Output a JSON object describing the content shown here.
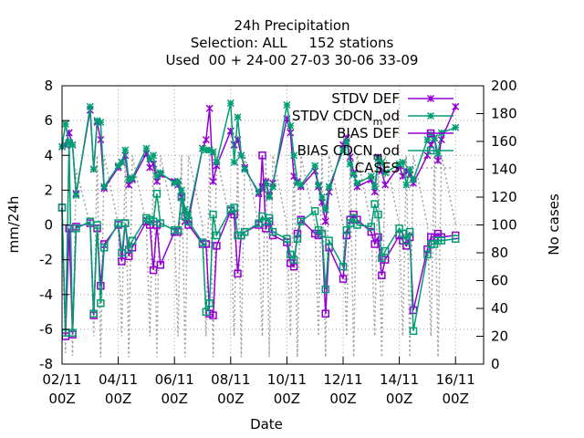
{
  "chart_data": {
    "type": "line",
    "title": [
      "24h Precipitation",
      "Selection: ALL     152 stations",
      "Used  00 + 24-00 27-03 30-06 33-09"
    ],
    "xlabel": "Date",
    "ylabel": "mm/24h",
    "y2label": "No cases",
    "xlim": [
      0,
      15
    ],
    "ylim": [
      -8,
      8
    ],
    "y2lim": [
      0,
      200
    ],
    "x_tick_labels": [
      {
        "line1": "02/11",
        "line2": "00Z"
      },
      {
        "line1": "04/11",
        "line2": "00Z"
      },
      {
        "line1": "06/11",
        "line2": "00Z"
      },
      {
        "line1": "08/11",
        "line2": "00Z"
      },
      {
        "line1": "10/11",
        "line2": "00Z"
      },
      {
        "line1": "12/11",
        "line2": "00Z"
      },
      {
        "line1": "14/11",
        "line2": "00Z"
      },
      {
        "line1": "16/11",
        "line2": "00Z"
      }
    ],
    "y_ticks": [
      -8,
      -6,
      -4,
      -2,
      0,
      2,
      4,
      6,
      8
    ],
    "y2_ticks": [
      0,
      20,
      40,
      60,
      80,
      100,
      120,
      140,
      160,
      180,
      200
    ],
    "grid": true,
    "legend_position": "top-right",
    "x": [
      0.0,
      0.125,
      0.25,
      0.375,
      0.5,
      1.0,
      1.125,
      1.25,
      1.375,
      1.5,
      2.0,
      2.125,
      2.25,
      2.375,
      2.5,
      3.0,
      3.125,
      3.25,
      3.375,
      3.5,
      4.0,
      4.125,
      4.25,
      4.375,
      4.5,
      5.0,
      5.125,
      5.25,
      5.375,
      5.5,
      6.0,
      6.125,
      6.25,
      6.375,
      6.5,
      7.0,
      7.125,
      7.25,
      7.375,
      7.5,
      8.0,
      8.125,
      8.25,
      8.375,
      8.5,
      9.0,
      9.125,
      9.25,
      9.375,
      9.5,
      10.0,
      10.125,
      10.25,
      10.375,
      10.5,
      11.0,
      11.125,
      11.25,
      11.375,
      11.5,
      12.0,
      12.125,
      12.25,
      12.375,
      12.5,
      13.0,
      13.125,
      13.25,
      13.375,
      13.5,
      14.0
    ],
    "series": [
      {
        "name": "STDV DEF",
        "color": "#9400d3",
        "marker": "asterisk",
        "values": [
          4.5,
          4.6,
          5.3,
          4.6,
          1.8,
          6.6,
          3.2,
          5.9,
          4.9,
          2.1,
          3.3,
          3.6,
          4.0,
          2.3,
          2.6,
          4.1,
          3.3,
          3.5,
          2.5,
          2.9,
          2.5,
          2.3,
          1.6,
          0.2,
          0.3,
          4.4,
          4.9,
          6.7,
          2.5,
          3.4,
          5.4,
          4.6,
          4.9,
          4.0,
          3.3,
          1.8,
          2.2,
          2.5,
          1.7,
          2.4,
          6.1,
          5.3,
          2.8,
          2.5,
          2.2,
          3.1,
          2.2,
          1.3,
          0.2,
          1.9,
          4.6,
          5.0,
          3.9,
          3.0,
          2.2,
          2.6,
          1.9,
          3.9,
          3.1,
          2.3,
          3.4,
          2.8,
          3.1,
          2.9,
          2.4,
          4.0,
          4.6,
          5.0,
          3.7,
          4.9,
          6.8
        ]
      },
      {
        "name": "STDV CDCN_mod",
        "color": "#009e73",
        "marker": "star",
        "values": [
          4.5,
          5.8,
          4.7,
          4.6,
          1.7,
          6.8,
          3.2,
          6.0,
          5.9,
          2.2,
          3.4,
          3.6,
          4.3,
          2.6,
          2.7,
          4.4,
          3.8,
          4.0,
          2.8,
          3.0,
          2.4,
          2.5,
          2.0,
          0.9,
          0.6,
          4.4,
          4.3,
          4.3,
          4.2,
          3.6,
          7.0,
          3.6,
          6.2,
          4.0,
          3.2,
          1.9,
          2.1,
          2.4,
          1.6,
          2.2,
          6.9,
          5.7,
          4.0,
          2.4,
          2.3,
          3.4,
          2.3,
          1.6,
          0.9,
          2.2,
          4.3,
          4.8,
          3.5,
          2.9,
          2.4,
          2.8,
          2.2,
          3.8,
          3.6,
          3.0,
          3.5,
          3.6,
          2.3,
          3.2,
          2.6,
          4.9,
          5.2,
          5.0,
          4.1,
          5.3,
          5.6
        ]
      },
      {
        "name": "BIAS DEF",
        "color": "#9400d3",
        "marker": "square",
        "values": [
          1.0,
          -6.4,
          -0.2,
          -6.3,
          -0.1,
          0.1,
          -5.2,
          -0.2,
          -3.5,
          -1.1,
          0.0,
          -2.1,
          0.1,
          -1.8,
          -1.3,
          0.2,
          0.0,
          -2.6,
          0.0,
          -2.3,
          -0.4,
          -0.4,
          1.6,
          0.5,
          0.0,
          -1.1,
          -1.1,
          -5.1,
          -5.2,
          -1.2,
          0.8,
          0.6,
          -2.8,
          -0.6,
          -0.4,
          0.0,
          4.0,
          -0.2,
          0.2,
          -0.6,
          -1.0,
          -2.2,
          -2.4,
          -0.5,
          0.3,
          -0.5,
          -0.6,
          -0.5,
          -5.1,
          -1.3,
          -3.1,
          -0.6,
          0.3,
          0.6,
          0.3,
          -0.4,
          -1.1,
          -0.7,
          -2.9,
          -2.0,
          -0.6,
          -0.9,
          -1.2,
          -0.7,
          -4.9,
          -1.4,
          -0.7,
          -0.7,
          -0.5,
          -0.7,
          -0.6
        ]
      },
      {
        "name": "BIAS CDCN_mod",
        "color": "#009e73",
        "marker": "square",
        "values": [
          1.0,
          -6.2,
          4.7,
          -6.2,
          -0.2,
          0.2,
          -5.1,
          0.0,
          -4.5,
          -1.3,
          0.1,
          -1.6,
          0.1,
          -1.4,
          -0.9,
          0.4,
          0.3,
          0.2,
          1.8,
          0.1,
          -0.3,
          -0.3,
          1.6,
          0.5,
          0.2,
          -1.0,
          -5.0,
          -4.5,
          0.6,
          -0.6,
          0.9,
          1.0,
          -0.6,
          -0.6,
          -0.4,
          0.1,
          0.5,
          0.2,
          0.4,
          -0.4,
          -0.8,
          -1.7,
          -2.0,
          -0.8,
          0.2,
          0.8,
          -0.3,
          -0.5,
          -3.7,
          -0.9,
          -2.4,
          -0.3,
          0.1,
          0.4,
          0.0,
          -0.1,
          1.2,
          0.6,
          -1.9,
          -1.5,
          -0.2,
          -0.5,
          -0.9,
          -0.4,
          -6.1,
          -1.7,
          -1.1,
          -1.1,
          -0.9,
          -0.9,
          -0.8
        ]
      },
      {
        "name": "CASES",
        "color": "#a0a0a0",
        "marker": "none",
        "axis": "y2",
        "values": [
          100,
          8,
          150,
          6,
          140,
          100,
          20,
          150,
          5,
          150,
          100,
          20,
          150,
          5,
          150,
          100,
          20,
          150,
          5,
          150,
          100,
          20,
          150,
          5,
          150,
          100,
          20,
          150,
          5,
          150,
          100,
          20,
          150,
          5,
          150,
          100,
          20,
          150,
          5,
          150,
          100,
          20,
          150,
          5,
          150,
          100,
          20,
          150,
          5,
          150,
          100,
          20,
          150,
          5,
          150,
          100,
          20,
          150,
          5,
          150,
          100,
          20,
          150,
          5,
          150,
          100,
          20,
          150,
          5,
          150,
          100
        ]
      }
    ]
  },
  "legend": [
    {
      "label": "STDV DEF",
      "color": "#9400d3",
      "marker": "asterisk"
    },
    {
      "label": "STDV CDCN_mod",
      "color": "#009e73",
      "marker": "star"
    },
    {
      "label": "BIAS DEF",
      "color": "#9400d3",
      "marker": "square"
    },
    {
      "label": "BIAS CDCN_mod",
      "color": "#009e73",
      "marker": "square"
    },
    {
      "label": "CASES",
      "color": "#a0a0a0",
      "marker": "none"
    }
  ]
}
